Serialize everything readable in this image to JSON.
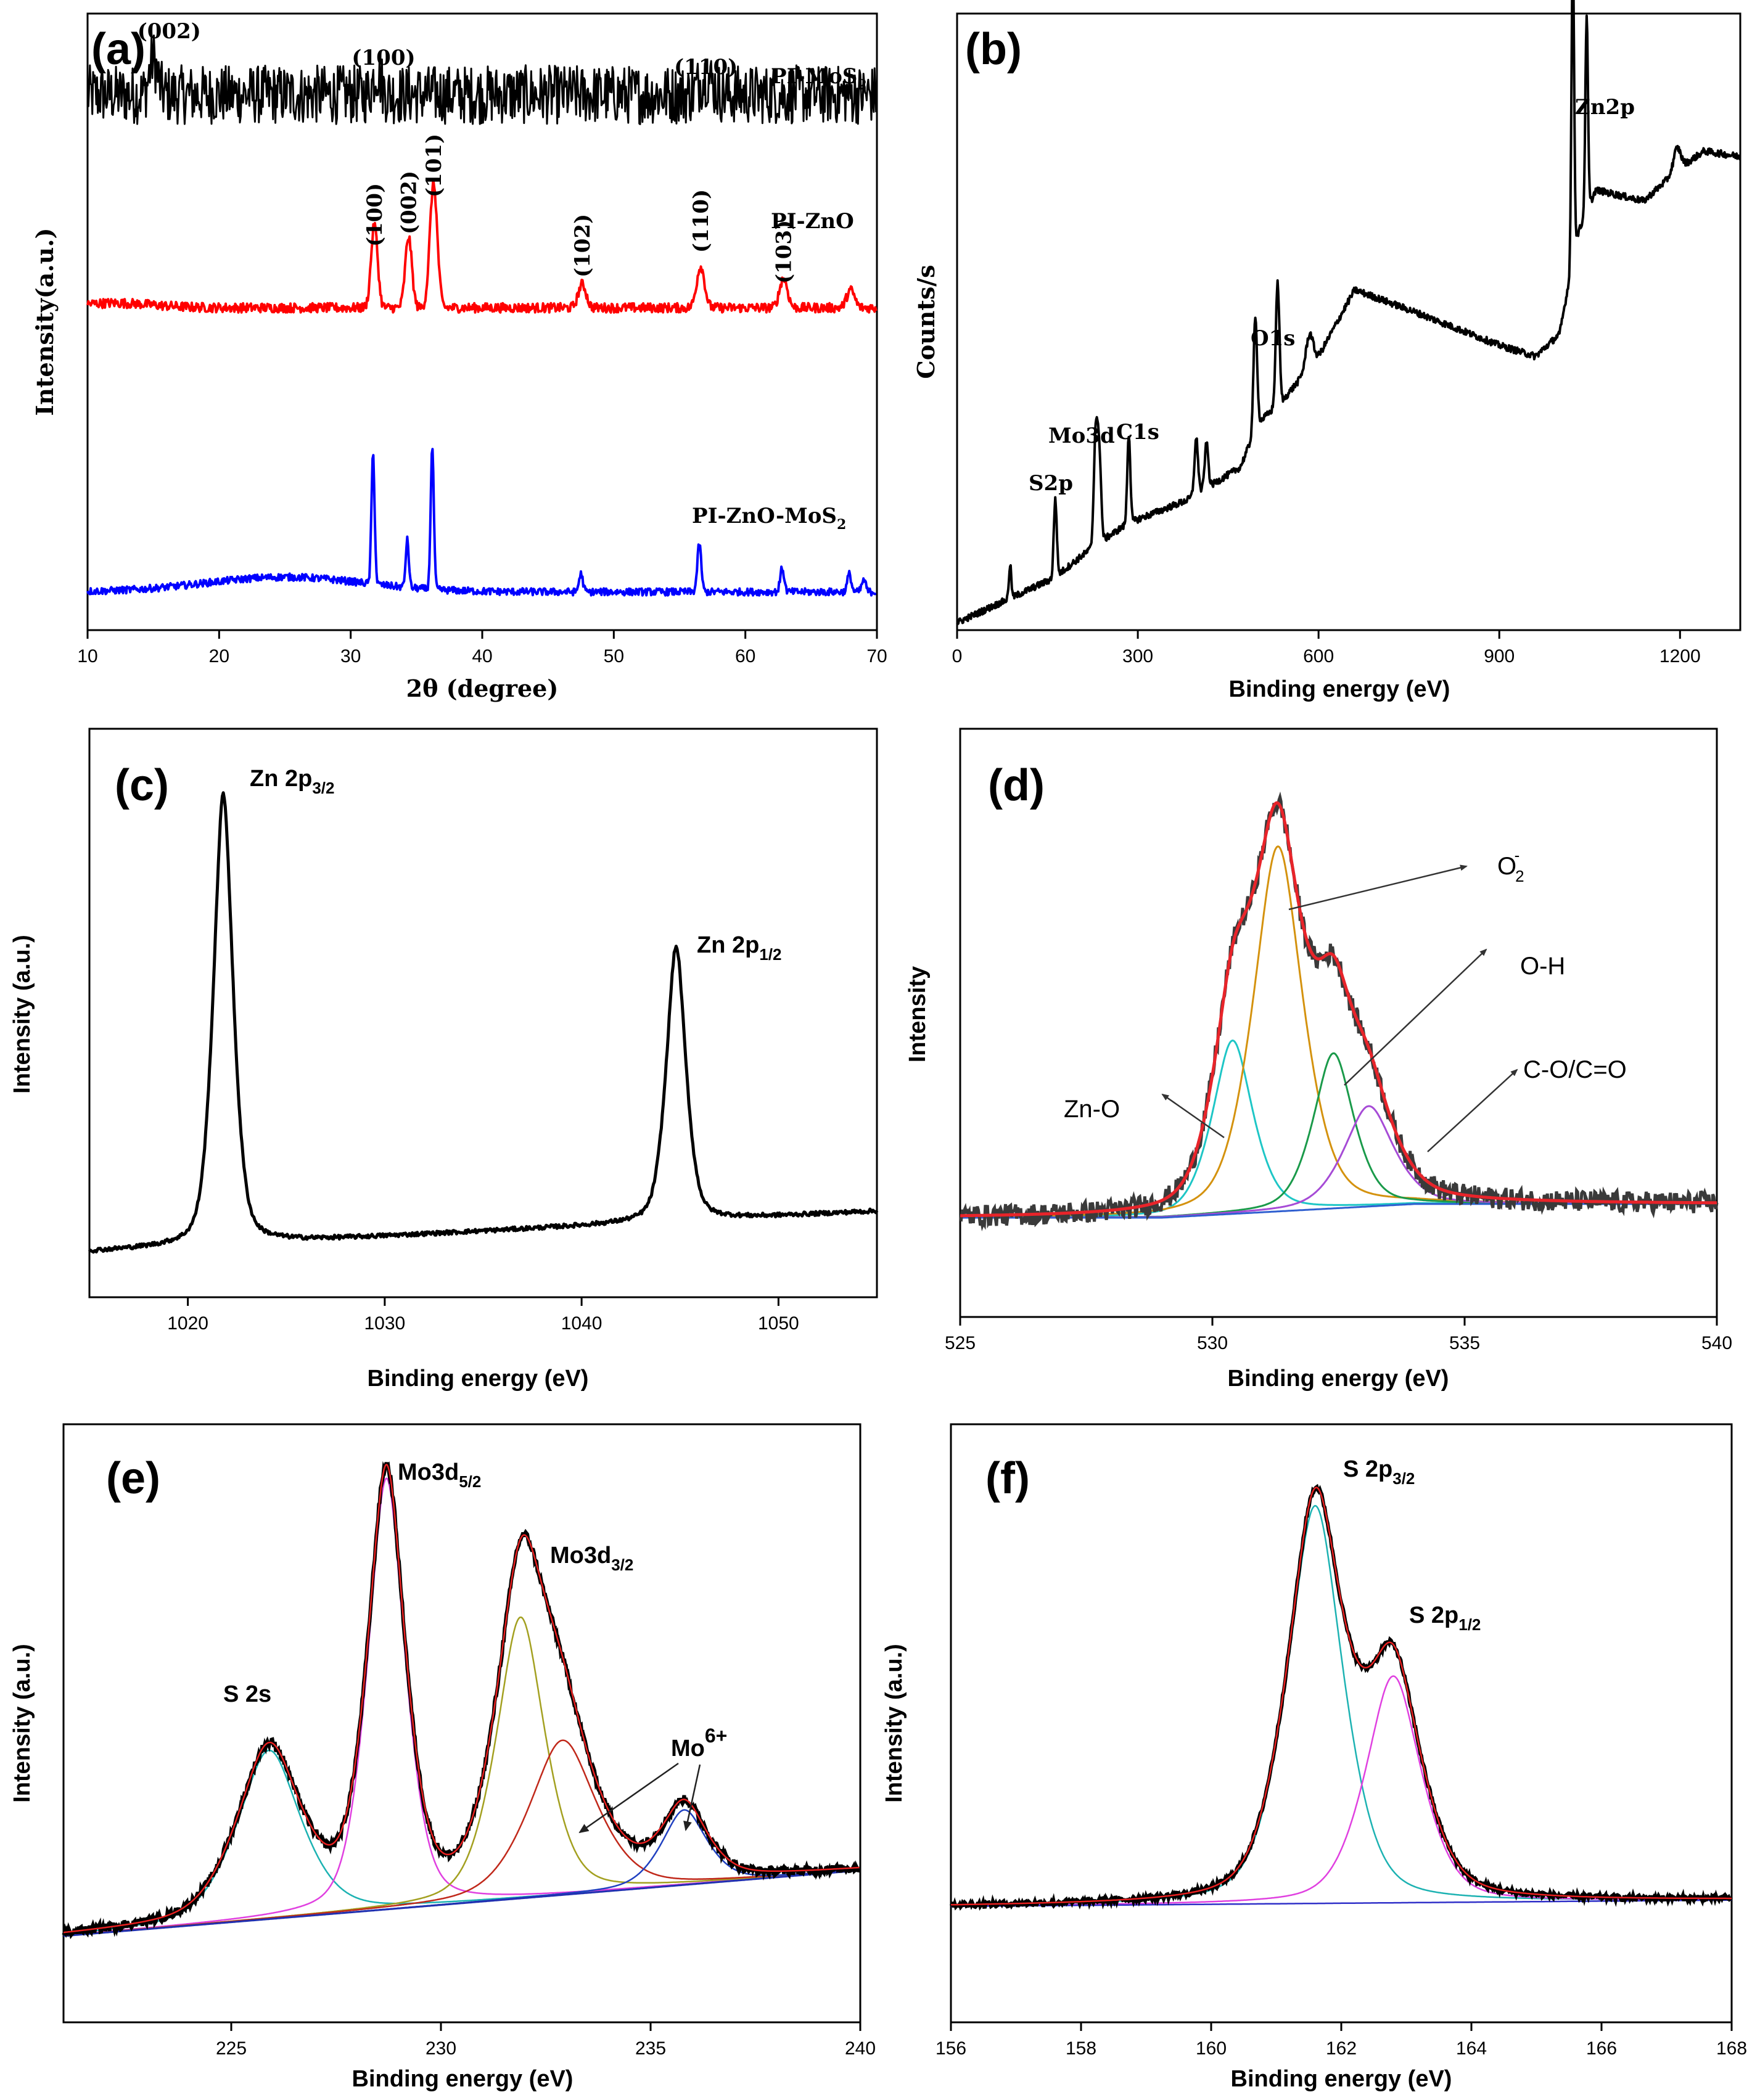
{
  "figure": {
    "panels": [
      {
        "id": "a",
        "label": "(a)"
      },
      {
        "id": "b",
        "label": "(b)"
      },
      {
        "id": "c",
        "label": "(c)"
      },
      {
        "id": "d",
        "label": "(d)"
      },
      {
        "id": "e",
        "label": "(e)"
      },
      {
        "id": "f",
        "label": "(f)"
      }
    ]
  },
  "chart_data": [
    {
      "id": "a",
      "type": "line",
      "title": "(a)",
      "xlabel": "2θ (degree)",
      "ylabel": "Intensity(a.u.)",
      "xlim": [
        10,
        70
      ],
      "xticks": [
        10,
        20,
        30,
        40,
        50,
        60,
        70
      ],
      "colors": {
        "PI-MoS2": "#000000",
        "PI-ZnO": "#ff0000",
        "PI-ZnO-MoS2": "#0000ff"
      },
      "series": [
        {
          "name": "PI-MoS2",
          "legend": "PI-MoS",
          "legend_sub": "2",
          "offset": 84,
          "noise": 5,
          "peaks": [
            [
              15.0,
              6,
              0.3
            ],
            [
              32.0,
              4,
              0.3
            ],
            [
              57.0,
              3,
              0.5
            ]
          ],
          "hkl": [
            {
              "x": 16.2,
              "label": "(002)"
            },
            {
              "x": 32.5,
              "label": "(100)"
            },
            {
              "x": 57.0,
              "label": "(110)"
            }
          ]
        },
        {
          "name": "PI-ZnO",
          "legend": "PI-ZnO",
          "legend_sub": "",
          "offset": 48,
          "noise": 0.8,
          "peaks": [
            [
              31.8,
              14,
              0.25
            ],
            [
              34.4,
              12,
              0.25
            ],
            [
              36.3,
              21,
              0.28
            ],
            [
              47.6,
              4,
              0.3
            ],
            [
              56.6,
              7,
              0.3
            ],
            [
              62.9,
              5,
              0.3
            ],
            [
              68.0,
              3,
              0.3
            ]
          ],
          "hkl": [
            {
              "x": 31.8,
              "label": "(100)"
            },
            {
              "x": 34.4,
              "label": "(002)"
            },
            {
              "x": 36.3,
              "label": "(101)"
            },
            {
              "x": 47.6,
              "label": "(102)"
            },
            {
              "x": 56.6,
              "label": "(110)"
            },
            {
              "x": 62.9,
              "label": "(103)"
            }
          ]
        },
        {
          "name": "PI-ZnO-MoS2",
          "legend": "PI-ZnO-MoS",
          "legend_sub": "2",
          "offset": 0,
          "noise": 0.6,
          "peaks": [
            [
              31.7,
              22,
              0.12
            ],
            [
              34.3,
              8,
              0.12
            ],
            [
              36.2,
              24,
              0.12
            ],
            [
              47.5,
              3,
              0.15
            ],
            [
              56.5,
              8,
              0.15
            ],
            [
              62.8,
              4,
              0.15
            ],
            [
              67.9,
              3,
              0.15
            ],
            [
              69.0,
              2,
              0.15
            ]
          ],
          "hkl": []
        }
      ]
    },
    {
      "id": "b",
      "type": "line",
      "title": "(b)",
      "xlabel": "Binding energy (eV)",
      "ylabel": "Counts/s",
      "xlim": [
        0,
        1300
      ],
      "xticks": [
        0,
        300,
        600,
        900,
        1200
      ],
      "annotations": [
        {
          "label": "Zn2p",
          "x": 1030
        },
        {
          "label": "O1s",
          "x": 532
        },
        {
          "label": "Mo3d",
          "x": 230
        },
        {
          "label": "C1s",
          "x": 285
        },
        {
          "label": "S2p",
          "x": 163
        }
      ]
    },
    {
      "id": "c",
      "type": "line",
      "title": "(c)",
      "xlabel": "Binding energy (eV)",
      "ylabel": "Intensity (a.u.)",
      "xlim": [
        1015,
        1055
      ],
      "xticks": [
        1020,
        1030,
        1040,
        1050
      ],
      "peaks": [
        {
          "center": 1021.8,
          "height": 100,
          "name": "Zn 2p",
          "sub": "3/2"
        },
        {
          "center": 1044.8,
          "height": 61,
          "name": "Zn 2p",
          "sub": "1/2"
        }
      ]
    },
    {
      "id": "d",
      "type": "line",
      "title": "(d)",
      "xlabel": "Binding energy (eV)",
      "ylabel": "Intensity",
      "xlim": [
        525,
        540
      ],
      "xticks": [
        525,
        530,
        535,
        540
      ],
      "components": [
        {
          "name": "Zn-O",
          "center": 530.4,
          "height": 38,
          "width": 0.45,
          "color": "#1ec6c6"
        },
        {
          "name": "O2-",
          "center": 531.3,
          "height": 80,
          "width": 0.55,
          "color": "#d4920e"
        },
        {
          "name": "O-H",
          "center": 532.4,
          "height": 34,
          "width": 0.45,
          "color": "#1a9a4a"
        },
        {
          "name": "C-O/C=O",
          "center": 533.1,
          "height": 22,
          "width": 0.55,
          "color": "#a64bd6"
        }
      ],
      "labels": [
        {
          "text": "O",
          "sub": "2",
          "sup": "-"
        },
        {
          "text": "O-H"
        },
        {
          "text": "C-O/C=O"
        },
        {
          "text": "Zn-O"
        }
      ],
      "colors": {
        "envelope": "#e8242a",
        "raw": "#3a3a3a",
        "background": "#2f5fd0"
      }
    },
    {
      "id": "e",
      "type": "line",
      "title": "(e)",
      "xlabel": "Binding energy (eV)",
      "ylabel": "Intensity (a.u.)",
      "xlim": [
        221,
        240
      ],
      "xticks": [
        225,
        230,
        235,
        240
      ],
      "components": [
        {
          "name": "S 2s",
          "center": 225.9,
          "height": 36,
          "width": 0.85,
          "color": "#1cb2b2"
        },
        {
          "name": "Mo3d5/2",
          "center": 228.7,
          "height": 92,
          "width": 0.5,
          "color": "#e040e0"
        },
        {
          "name": "Mo3d3/2",
          "center": 231.9,
          "height": 60,
          "width": 0.65,
          "color": "#a3a020"
        },
        {
          "name": "Mo3d3/2b",
          "center": 232.9,
          "height": 33,
          "width": 0.9,
          "color": "#c0281a"
        },
        {
          "name": "Mo6+",
          "center": 235.8,
          "height": 16,
          "width": 0.6,
          "color": "#2040c0"
        }
      ],
      "labels": [
        {
          "text": "S 2s"
        },
        {
          "text": "Mo3d",
          "sub": "5/2"
        },
        {
          "text": "Mo3d",
          "sub": "3/2"
        },
        {
          "text": "Mo",
          "sup": "6+"
        }
      ]
    },
    {
      "id": "f",
      "type": "line",
      "title": "(f)",
      "xlabel": "Binding energy (eV)",
      "ylabel": "Intensity (a.u.)",
      "xlim": [
        156,
        168
      ],
      "xticks": [
        156,
        158,
        160,
        162,
        164,
        166,
        168
      ],
      "components": [
        {
          "name": "S 2p3/2",
          "center": 161.6,
          "height": 100,
          "width": 0.48,
          "color": "#1cb2b2"
        },
        {
          "name": "S 2p1/2",
          "center": 162.8,
          "height": 57,
          "width": 0.48,
          "color": "#e040e0"
        }
      ],
      "labels": [
        {
          "text": "S 2p",
          "sub": "3/2"
        },
        {
          "text": "S 2p",
          "sub": "1/2"
        }
      ]
    }
  ]
}
